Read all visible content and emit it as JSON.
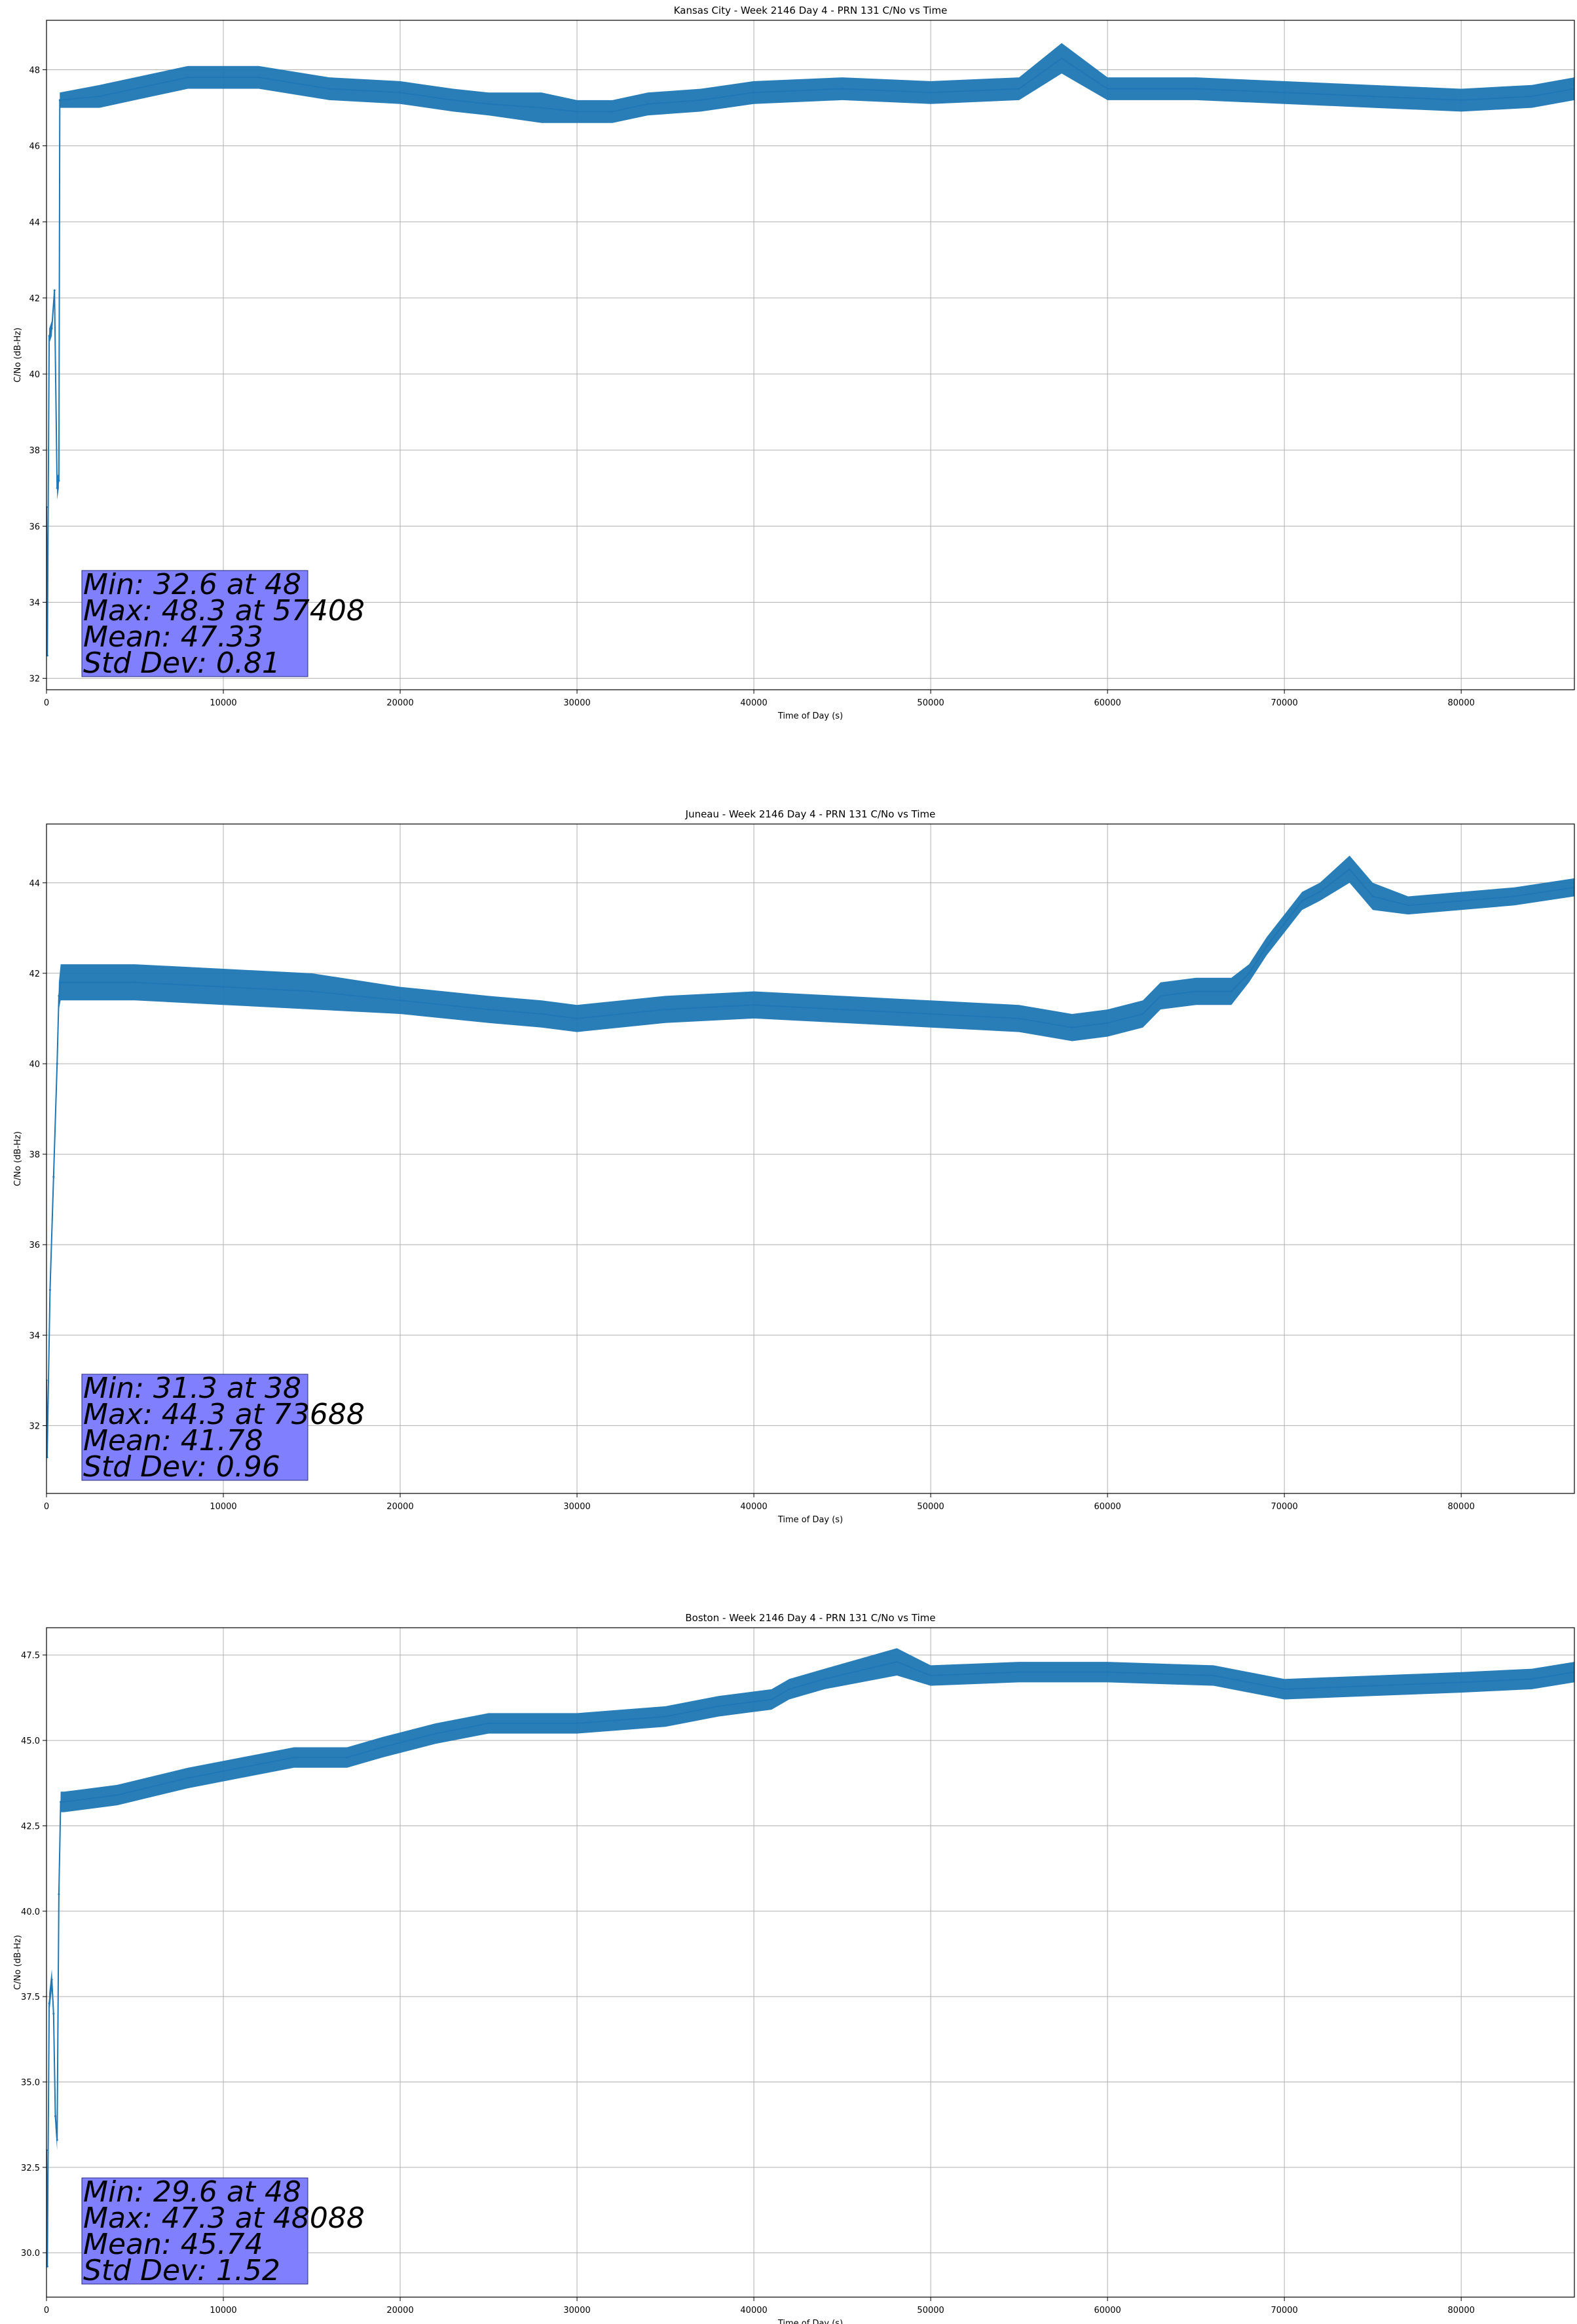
{
  "chart_data": [
    {
      "type": "line",
      "title": "Kansas City - Week 2146 Day 4 - PRN 131 C/No vs Time",
      "xlabel": "Time of Day (s)",
      "ylabel": "C/No (dB-Hz)",
      "xlim": [
        0,
        86400
      ],
      "ylim": [
        31.7,
        49.3
      ],
      "xticks": [
        0,
        10000,
        20000,
        30000,
        40000,
        50000,
        60000,
        70000,
        80000
      ],
      "xtick_labels": [
        "0",
        "10000",
        "20000",
        "30000",
        "40000",
        "50000",
        "60000",
        "70000",
        "80000"
      ],
      "yticks": [
        32,
        34,
        36,
        38,
        40,
        42,
        44,
        46,
        48
      ],
      "ytick_labels": [
        "32",
        "34",
        "36",
        "38",
        "40",
        "42",
        "44",
        "46",
        "48"
      ],
      "grid": true,
      "color": "#1f77b4",
      "stats_box_color": "#8080ff",
      "stats_lines": [
        "Min: 32.6 at 48",
        "Max: 48.3 at 57408",
        "Mean: 47.33",
        "Std Dev: 0.81"
      ],
      "series": [
        {
          "x": [
            0,
            48,
            150,
            300,
            450,
            600,
            700,
            750,
            3000,
            5000,
            8000,
            12000,
            16000,
            20000,
            23000,
            25000,
            28000,
            30000,
            32000,
            34000,
            37000,
            40000,
            45000,
            50000,
            55000,
            57408,
            60000,
            65000,
            70000,
            75000,
            80000,
            84000,
            86400
          ],
          "y": [
            36.5,
            32.6,
            41.0,
            41.2,
            42.2,
            37.0,
            37.2,
            47.2,
            47.3,
            47.5,
            47.8,
            47.8,
            47.5,
            47.4,
            47.2,
            47.1,
            47.0,
            46.9,
            46.9,
            47.1,
            47.2,
            47.4,
            47.5,
            47.4,
            47.5,
            48.3,
            47.5,
            47.5,
            47.4,
            47.3,
            47.2,
            47.3,
            47.5
          ],
          "band": [
            0.3,
            0.0,
            0.2,
            0.2,
            0.0,
            0.3,
            0.2,
            0.2,
            0.3,
            0.3,
            0.3,
            0.3,
            0.3,
            0.3,
            0.3,
            0.3,
            0.4,
            0.3,
            0.3,
            0.3,
            0.3,
            0.3,
            0.3,
            0.3,
            0.3,
            0.4,
            0.3,
            0.3,
            0.3,
            0.3,
            0.3,
            0.3,
            0.3
          ]
        }
      ]
    },
    {
      "type": "line",
      "title": "Juneau - Week 2146 Day 4 - PRN 131 C/No vs Time",
      "xlabel": "Time of Day (s)",
      "ylabel": "C/No (dB-Hz)",
      "xlim": [
        0,
        86400
      ],
      "ylim": [
        30.5,
        45.3
      ],
      "xticks": [
        0,
        10000,
        20000,
        30000,
        40000,
        50000,
        60000,
        70000,
        80000
      ],
      "xtick_labels": [
        "0",
        "10000",
        "20000",
        "30000",
        "40000",
        "50000",
        "60000",
        "70000",
        "80000"
      ],
      "yticks": [
        32,
        34,
        36,
        38,
        40,
        42,
        44
      ],
      "ytick_labels": [
        "32",
        "34",
        "36",
        "38",
        "40",
        "42",
        "44"
      ],
      "grid": true,
      "color": "#1f77b4",
      "stats_box_color": "#8080ff",
      "stats_lines": [
        "Min: 31.3 at 38",
        "Max: 44.3 at 73688",
        "Mean: 41.78",
        "Std Dev: 0.96"
      ],
      "series": [
        {
          "x": [
            0,
            38,
            200,
            400,
            600,
            700,
            800,
            5000,
            10000,
            15000,
            20000,
            25000,
            28000,
            30000,
            35000,
            40000,
            45000,
            50000,
            55000,
            58000,
            60000,
            62000,
            63000,
            65000,
            67000,
            68000,
            69000,
            70000,
            71000,
            72000,
            73688,
            75000,
            77000,
            80000,
            83000,
            86400
          ],
          "y": [
            33.0,
            31.3,
            35.0,
            37.5,
            40.0,
            41.5,
            41.8,
            41.8,
            41.7,
            41.6,
            41.4,
            41.2,
            41.1,
            41.0,
            41.2,
            41.3,
            41.2,
            41.1,
            41.0,
            40.8,
            40.9,
            41.1,
            41.5,
            41.6,
            41.6,
            42.0,
            42.6,
            43.1,
            43.6,
            43.8,
            44.3,
            43.7,
            43.5,
            43.6,
            43.7,
            43.9
          ],
          "band": [
            0.2,
            0.0,
            0.1,
            0.1,
            0.1,
            0.3,
            0.4,
            0.4,
            0.4,
            0.4,
            0.3,
            0.3,
            0.3,
            0.3,
            0.3,
            0.3,
            0.3,
            0.3,
            0.3,
            0.3,
            0.3,
            0.3,
            0.3,
            0.3,
            0.3,
            0.2,
            0.2,
            0.2,
            0.2,
            0.2,
            0.3,
            0.3,
            0.2,
            0.2,
            0.2,
            0.2
          ]
        }
      ]
    },
    {
      "type": "line",
      "title": "Boston - Week 2146 Day 4 - PRN 131 C/No vs Time",
      "xlabel": "Time of Day (s)",
      "ylabel": "C/No (dB-Hz)",
      "xlim": [
        0,
        86400
      ],
      "ylim": [
        28.7,
        48.3
      ],
      "xticks": [
        0,
        10000,
        20000,
        30000,
        40000,
        50000,
        60000,
        70000,
        80000
      ],
      "xtick_labels": [
        "0",
        "10000",
        "20000",
        "30000",
        "40000",
        "50000",
        "60000",
        "70000",
        "80000"
      ],
      "yticks": [
        30.0,
        32.5,
        35.0,
        37.5,
        40.0,
        42.5,
        45.0,
        47.5
      ],
      "ytick_labels": [
        "30.0",
        "32.5",
        "35.0",
        "37.5",
        "40.0",
        "42.5",
        "45.0",
        "47.5"
      ],
      "grid": true,
      "color": "#1f77b4",
      "stats_box_color": "#8080ff",
      "stats_lines": [
        "Min: 29.6 at 48",
        "Max: 47.3 at 48088",
        "Mean: 45.74",
        "Std Dev: 1.52"
      ],
      "series": [
        {
          "x": [
            0,
            48,
            150,
            300,
            400,
            500,
            600,
            700,
            800,
            1000,
            4000,
            8000,
            11000,
            14000,
            17000,
            19000,
            22000,
            25000,
            30000,
            35000,
            38000,
            41000,
            42000,
            44000,
            48088,
            50000,
            55000,
            60000,
            66000,
            70000,
            75000,
            80000,
            84000,
            86400
          ],
          "y": [
            33.0,
            29.6,
            37.3,
            38.0,
            37.0,
            34.0,
            33.3,
            40.5,
            43.2,
            43.2,
            43.4,
            43.9,
            44.2,
            44.5,
            44.5,
            44.8,
            45.2,
            45.5,
            45.5,
            45.7,
            46.0,
            46.2,
            46.5,
            46.8,
            47.3,
            46.9,
            47.0,
            47.0,
            46.9,
            46.5,
            46.6,
            46.7,
            46.8,
            47.0
          ],
          "band": [
            0.2,
            0.0,
            0.3,
            0.3,
            0.3,
            0.3,
            0.3,
            0.1,
            0.3,
            0.3,
            0.3,
            0.3,
            0.3,
            0.3,
            0.3,
            0.3,
            0.3,
            0.3,
            0.3,
            0.3,
            0.3,
            0.3,
            0.3,
            0.3,
            0.4,
            0.3,
            0.3,
            0.3,
            0.3,
            0.3,
            0.3,
            0.3,
            0.3,
            0.3
          ]
        }
      ]
    }
  ]
}
